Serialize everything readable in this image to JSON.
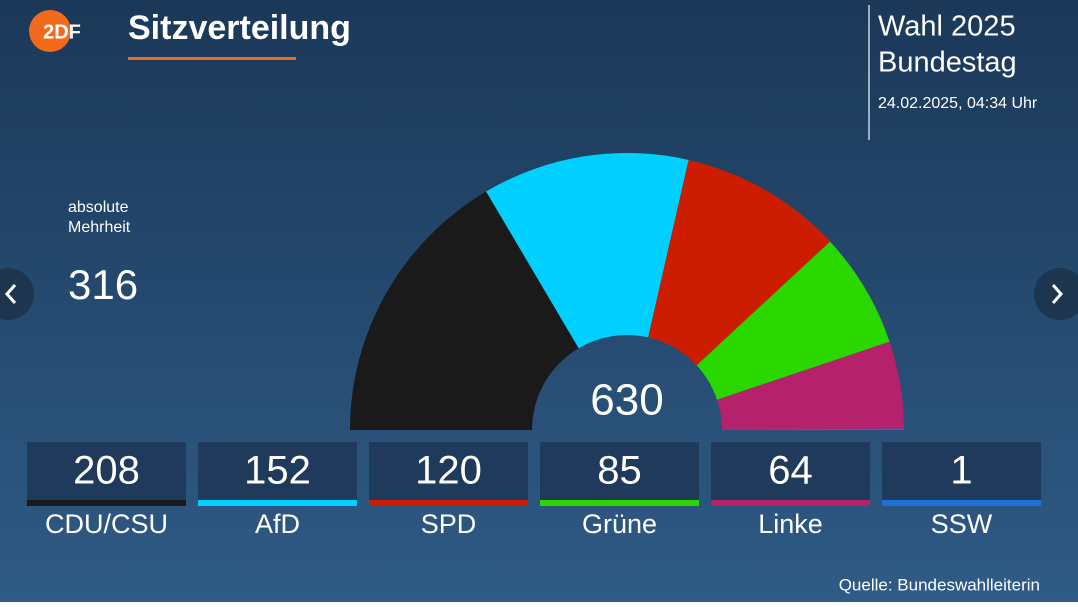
{
  "header": {
    "logo": "2DF",
    "title": "Sitzverteilung",
    "election": [
      "Wahl 2025",
      "Bundestag"
    ],
    "timestamp": "24.02.2025, 04:34 Uhr"
  },
  "chart_data": {
    "type": "parliament",
    "categories": [
      "CDU/CSU",
      "AfD",
      "SPD",
      "Grüne",
      "Linke",
      "SSW"
    ],
    "values": [
      208,
      152,
      120,
      85,
      64,
      1
    ],
    "colors": [
      "#1a1a1a",
      "#00d0ff",
      "#cc1d00",
      "#2ad800",
      "#b5216a",
      "#1e6fd6"
    ],
    "total": 630,
    "majority_label": [
      "absolute",
      "Mehrheit"
    ],
    "majority_value": 316
  },
  "source": "Quelle: Bundeswahlleiterin"
}
